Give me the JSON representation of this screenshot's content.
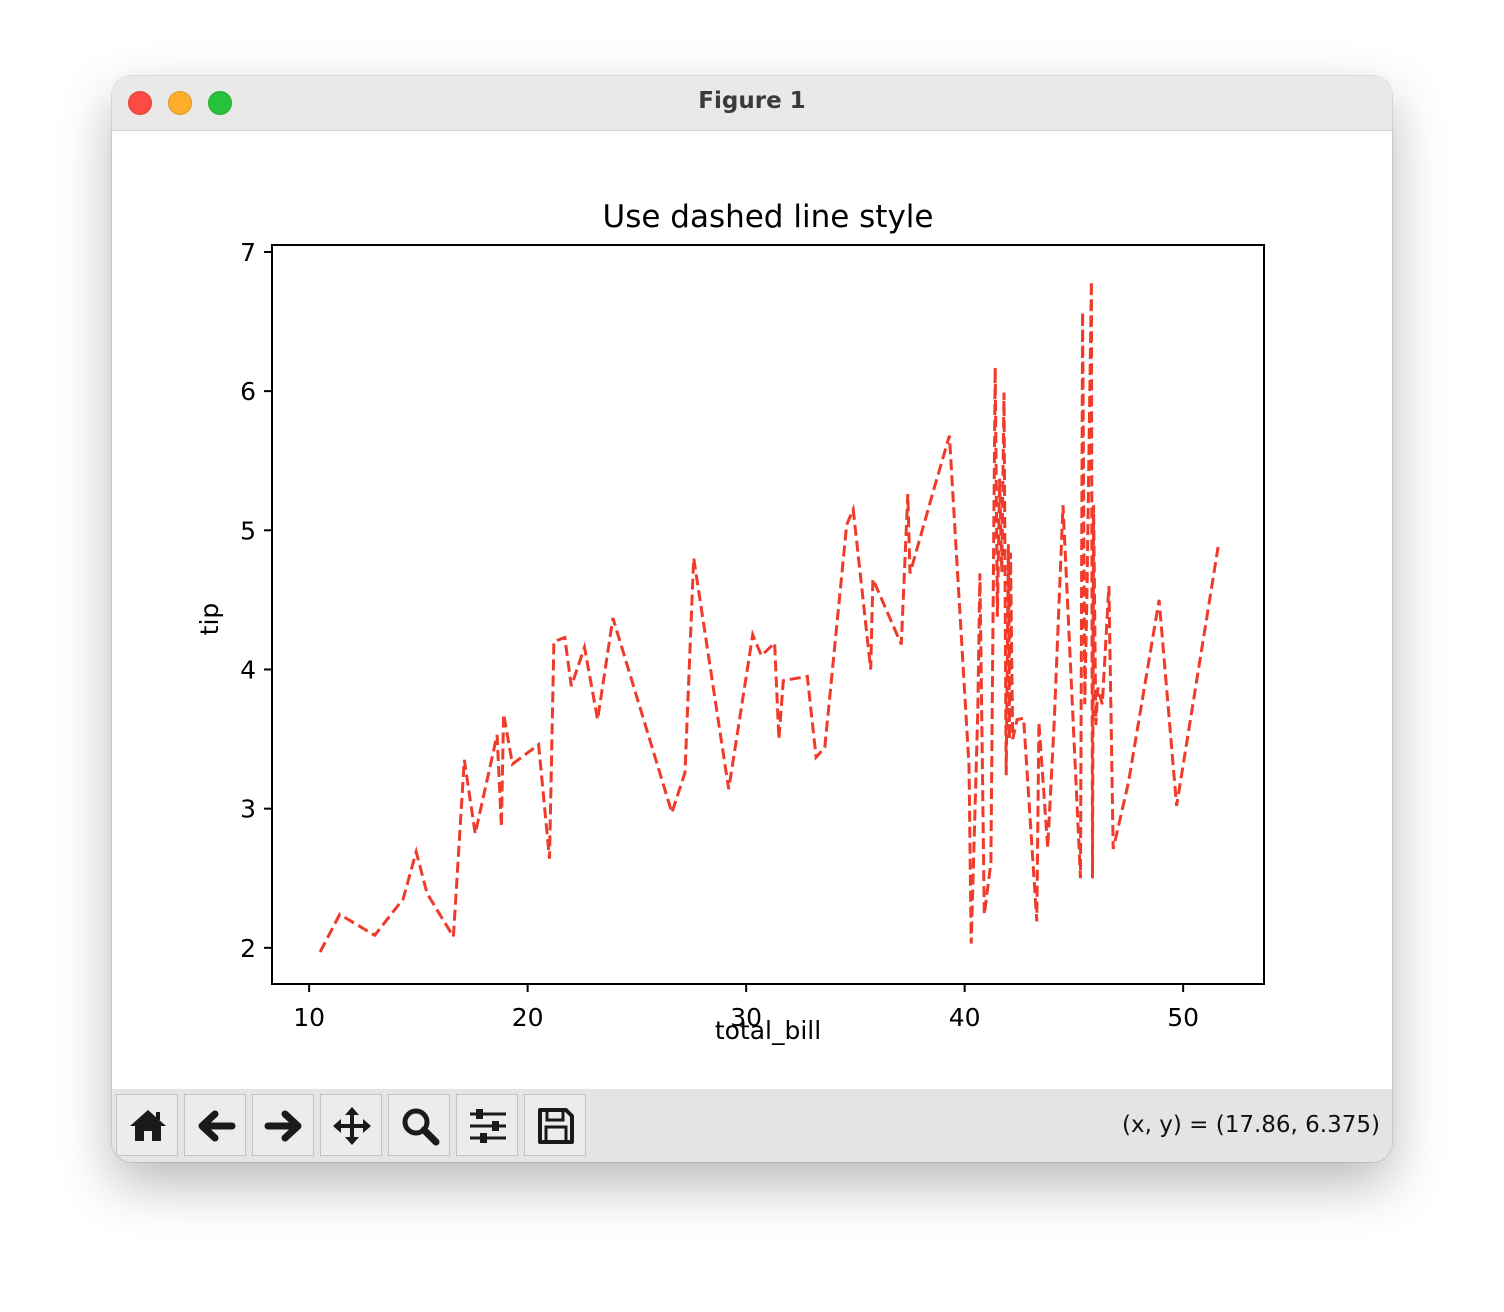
{
  "window": {
    "title": "Figure 1"
  },
  "toolbar": {
    "buttons": [
      {
        "name": "home",
        "icon": "home-icon"
      },
      {
        "name": "back",
        "icon": "arrow-left-icon"
      },
      {
        "name": "forward",
        "icon": "arrow-right-icon"
      },
      {
        "name": "pan",
        "icon": "move-icon"
      },
      {
        "name": "zoom",
        "icon": "magnifier-icon"
      },
      {
        "name": "configure-subplots",
        "icon": "sliders-icon"
      },
      {
        "name": "save",
        "icon": "floppy-disk-icon"
      }
    ],
    "coords": "(x, y) = (17.86, 6.375)"
  },
  "chart_data": {
    "type": "line",
    "title": "Use dashed line style",
    "xlabel": "total_bill",
    "ylabel": "tip",
    "xlim": [
      8.3,
      53.7
    ],
    "ylim": [
      1.74,
      7.05
    ],
    "xticks": [
      10,
      20,
      30,
      40,
      50
    ],
    "yticks": [
      2,
      3,
      4,
      5,
      6,
      7
    ],
    "line_style": "dashed",
    "color": "#f03a2a",
    "grid": false,
    "series": [
      {
        "x": [
          10.5,
          11.4,
          13.0,
          14.3,
          14.9,
          15.4,
          16.6,
          17.1,
          17.6,
          18.6,
          18.8,
          18.9,
          19.3,
          20.5,
          21.0,
          21.2,
          21.7,
          22.0,
          22.6,
          23.2,
          23.9,
          26.6,
          27.2,
          27.6,
          29.2,
          30.3,
          30.7,
          31.3,
          31.5,
          31.7,
          32.8,
          33.2,
          33.6,
          34.6,
          34.9,
          35.7,
          35.8,
          37.1,
          37.4,
          37.5,
          38.6,
          39.3,
          40.2,
          40.3,
          40.6,
          40.7,
          40.9,
          41.2,
          41.4,
          41.5,
          41.6,
          41.7,
          41.8,
          41.9,
          42.0,
          42.05,
          42.1,
          42.2,
          42.4,
          42.7,
          43.3,
          43.4,
          43.8,
          44.1,
          44.5,
          45.3,
          45.4,
          45.5,
          45.6,
          45.8,
          45.85,
          45.9,
          46.0,
          46.1,
          46.3,
          46.6,
          46.8,
          47.5,
          48.9,
          49.7,
          51.6
        ],
        "y": [
          1.97,
          2.24,
          2.09,
          2.35,
          2.69,
          2.39,
          2.08,
          3.35,
          2.82,
          3.53,
          2.87,
          3.68,
          3.32,
          3.46,
          2.64,
          4.2,
          4.23,
          3.88,
          4.16,
          3.64,
          4.37,
          2.97,
          3.26,
          4.8,
          3.14,
          4.25,
          4.1,
          4.19,
          3.5,
          3.92,
          3.95,
          3.37,
          3.44,
          5.04,
          5.15,
          4.0,
          4.65,
          4.18,
          5.26,
          4.69,
          5.3,
          5.68,
          3.31,
          2.03,
          3.7,
          4.69,
          2.24,
          2.61,
          6.17,
          4.38,
          5.37,
          4.7,
          5.99,
          3.24,
          4.9,
          3.5,
          4.84,
          3.5,
          3.64,
          3.65,
          2.19,
          3.62,
          2.72,
          3.62,
          5.18,
          2.5,
          6.57,
          3.75,
          4.56,
          6.79,
          2.5,
          5.18,
          3.6,
          3.87,
          3.75,
          4.6,
          2.71,
          3.19,
          4.5,
          3.02,
          4.88
        ]
      }
    ]
  }
}
